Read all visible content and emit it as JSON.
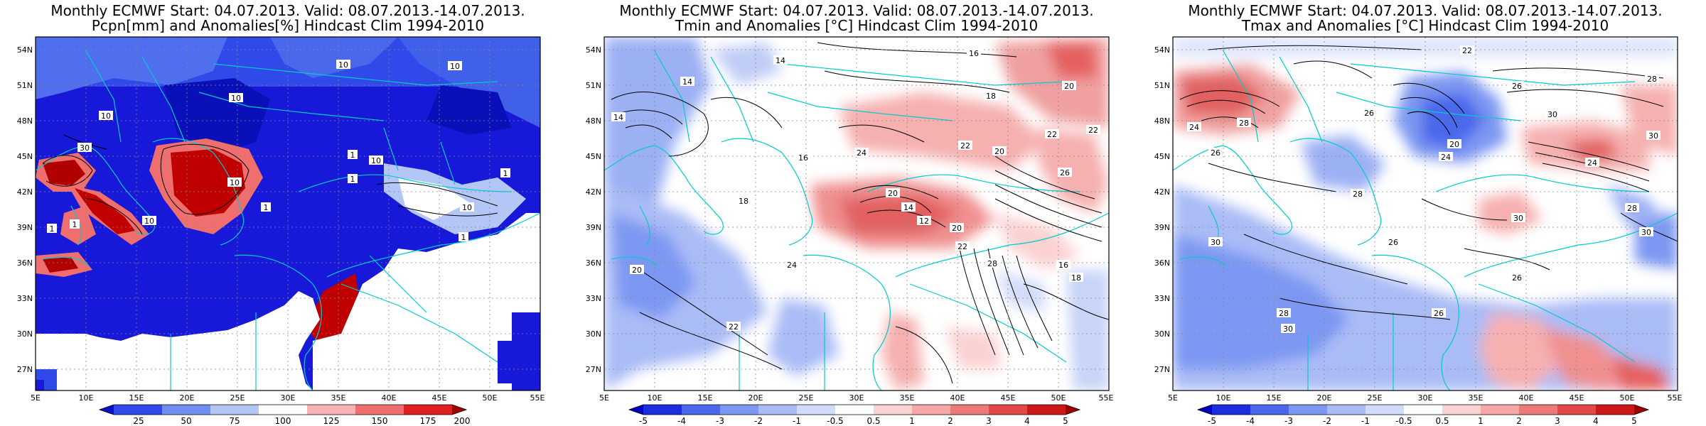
{
  "panels": [
    {
      "id": "pcpn",
      "title_line1": "Monthly ECMWF Start: 04.07.2013. Valid: 08.07.2013.-14.07.2013.",
      "title_line2": "Pcpn[mm] and Anomalies[%] Hindcast Clim 1994-2010",
      "lat_labels": [
        "54N",
        "51N",
        "48N",
        "45N",
        "42N",
        "39N",
        "36N",
        "33N",
        "30N",
        "27N"
      ],
      "lon_labels": [
        "5E",
        "10E",
        "15E",
        "20E",
        "25E",
        "30E",
        "35E",
        "40E",
        "45E",
        "50E",
        "55E"
      ],
      "colorbar_labels": [
        "25",
        "50",
        "75",
        "100",
        "125",
        "150",
        "175",
        "200"
      ],
      "colorbar_colors": [
        "#0a10c8",
        "#2f4ae8",
        "#6f8ef0",
        "#b3c6f5",
        "#ffffff",
        "#f7b3b3",
        "#ef6f6f",
        "#e02020",
        "#a00000"
      ],
      "contour_labels": [
        "10",
        "10",
        "10",
        "10",
        "30",
        "1",
        "1",
        "10",
        "1",
        "1",
        "10",
        "1",
        "10",
        "10",
        "1",
        "1"
      ]
    },
    {
      "id": "tmin",
      "title_line1": "Monthly ECMWF Start: 04.07.2013. Valid: 08.07.2013.-14.07.2013.",
      "title_line2": "Tmin and Anomalies [°C] Hindcast Clim 1994-2010",
      "lat_labels": [
        "54N",
        "51N",
        "48N",
        "45N",
        "42N",
        "39N",
        "36N",
        "33N",
        "30N",
        "27N"
      ],
      "lon_labels": [
        "5E",
        "10E",
        "15E",
        "20E",
        "25E",
        "30E",
        "35E",
        "40E",
        "45E",
        "50E",
        "55E"
      ],
      "colorbar_labels": [
        "-5",
        "-4",
        "-3",
        "-2",
        "-1",
        "-0.5",
        "0.5",
        "1",
        "2",
        "3",
        "4",
        "5"
      ],
      "colorbar_colors": [
        "#0000c0",
        "#1a2ee0",
        "#4a68ec",
        "#7d98f2",
        "#aabcf6",
        "#d2dcfa",
        "#ffffff",
        "#fbd2d2",
        "#f6a8a8",
        "#ee7878",
        "#e24848",
        "#cc1818",
        "#990000"
      ],
      "contour_labels": [
        "16",
        "14",
        "14",
        "20",
        "18",
        "22",
        "22",
        "14",
        "16",
        "24",
        "22",
        "26",
        "20",
        "18",
        "20",
        "14",
        "12",
        "20",
        "24",
        "22",
        "18",
        "16",
        "20",
        "22",
        "28"
      ]
    },
    {
      "id": "tmax",
      "title_line1": "Monthly ECMWF Start: 04.07.2013. Valid: 08.07.2013.-14.07.2013.",
      "title_line2": "Tmax and Anomalies [°C] Hindcast Clim 1994-2010",
      "lat_labels": [
        "54N",
        "51N",
        "48N",
        "45N",
        "42N",
        "39N",
        "36N",
        "33N",
        "30N",
        "27N"
      ],
      "lon_labels": [
        "5E",
        "10E",
        "15E",
        "20E",
        "25E",
        "30E",
        "35E",
        "40E",
        "45E",
        "50E",
        "55E"
      ],
      "colorbar_labels": [
        "-5",
        "-4",
        "-3",
        "-2",
        "-1",
        "-0.5",
        "0.5",
        "1",
        "2",
        "3",
        "4",
        "5"
      ],
      "colorbar_colors": [
        "#0000c0",
        "#1a2ee0",
        "#4a68ec",
        "#7d98f2",
        "#aabcf6",
        "#d2dcfa",
        "#ffffff",
        "#fbd2d2",
        "#f6a8a8",
        "#ee7878",
        "#e24848",
        "#cc1818",
        "#990000"
      ],
      "contour_labels": [
        "22",
        "26",
        "28",
        "26",
        "30",
        "24",
        "28",
        "30",
        "20",
        "24",
        "26",
        "28",
        "24",
        "30",
        "30",
        "28",
        "26",
        "30",
        "26",
        "28",
        "30",
        "26"
      ]
    }
  ]
}
